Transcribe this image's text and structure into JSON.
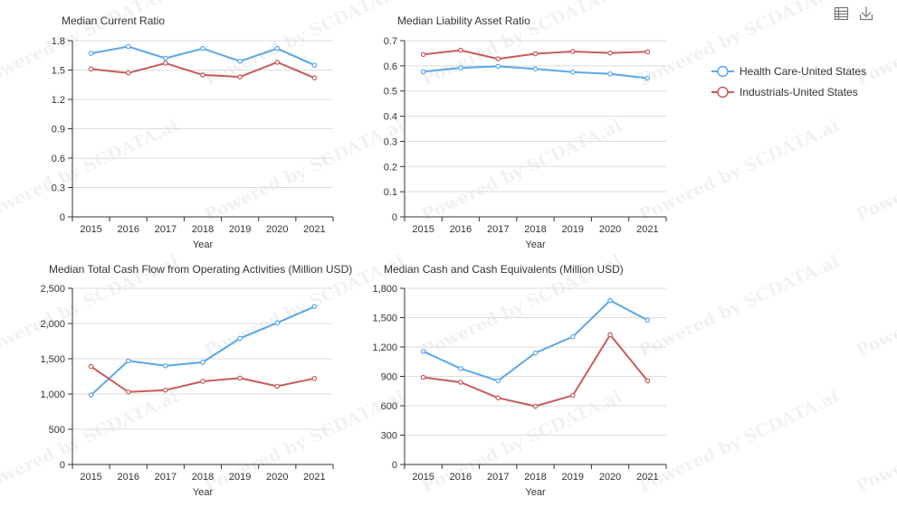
{
  "toolbox": {
    "data_view_icon": "data-view-icon",
    "download_icon": "download-icon"
  },
  "watermark": "Powered by SCDATA.ai",
  "legend": [
    {
      "name": "Health Care-United States",
      "color": "#5aa7ea"
    },
    {
      "name": "Industrials-United States",
      "color": "#c85b5b"
    }
  ],
  "chart_data": [
    {
      "type": "line",
      "title": "Median Current Ratio",
      "xlabel": "Year",
      "ylabel": "",
      "categories": [
        "2015",
        "2016",
        "2017",
        "2018",
        "2019",
        "2020",
        "2021"
      ],
      "ylim": [
        0,
        1.8
      ],
      "yticks": [
        "0",
        "0.3",
        "0.6",
        "0.9",
        "1.2",
        "1.5",
        "1.8"
      ],
      "series": [
        {
          "name": "Health Care-United States",
          "values": [
            1.67,
            1.74,
            1.62,
            1.72,
            1.59,
            1.72,
            1.55
          ]
        },
        {
          "name": "Industrials-United States",
          "values": [
            1.51,
            1.47,
            1.57,
            1.45,
            1.43,
            1.58,
            1.42
          ]
        }
      ]
    },
    {
      "type": "line",
      "title": "Median Liability Asset Ratio",
      "xlabel": "Year",
      "ylabel": "",
      "categories": [
        "2015",
        "2016",
        "2017",
        "2018",
        "2019",
        "2020",
        "2021"
      ],
      "ylim": [
        0,
        0.7
      ],
      "yticks": [
        "0",
        "0.1",
        "0.2",
        "0.3",
        "0.4",
        "0.5",
        "0.6",
        "0.7"
      ],
      "series": [
        {
          "name": "Health Care-United States",
          "values": [
            0.577,
            0.592,
            0.598,
            0.588,
            0.575,
            0.568,
            0.551
          ]
        },
        {
          "name": "Industrials-United States",
          "values": [
            0.645,
            0.662,
            0.628,
            0.648,
            0.657,
            0.651,
            0.656
          ]
        }
      ]
    },
    {
      "type": "line",
      "title": "Median Total Cash Flow from Operating Activities (Million USD)",
      "xlabel": "Year",
      "ylabel": "",
      "categories": [
        "2015",
        "2016",
        "2017",
        "2018",
        "2019",
        "2020",
        "2021"
      ],
      "ylim": [
        0,
        2500
      ],
      "yticks": [
        "0",
        "500",
        "1,000",
        "1,500",
        "2,000",
        "2,500"
      ],
      "series": [
        {
          "name": "Health Care-United States",
          "values": [
            985,
            1470,
            1400,
            1450,
            1790,
            2010,
            2240
          ]
        },
        {
          "name": "Industrials-United States",
          "values": [
            1390,
            1030,
            1055,
            1180,
            1225,
            1110,
            1220
          ]
        }
      ]
    },
    {
      "type": "line",
      "title": "Median Cash and Cash Equivalents (Million USD)",
      "xlabel": "Year",
      "ylabel": "",
      "categories": [
        "2015",
        "2016",
        "2017",
        "2018",
        "2019",
        "2020",
        "2021"
      ],
      "ylim": [
        0,
        1800
      ],
      "yticks": [
        "0",
        "300",
        "600",
        "900",
        "1,200",
        "1,500",
        "1,800"
      ],
      "series": [
        {
          "name": "Health Care-United States",
          "values": [
            1155,
            980,
            855,
            1140,
            1305,
            1675,
            1475
          ]
        },
        {
          "name": "Industrials-United States",
          "values": [
            890,
            840,
            680,
            595,
            705,
            1325,
            855
          ]
        }
      ]
    }
  ]
}
